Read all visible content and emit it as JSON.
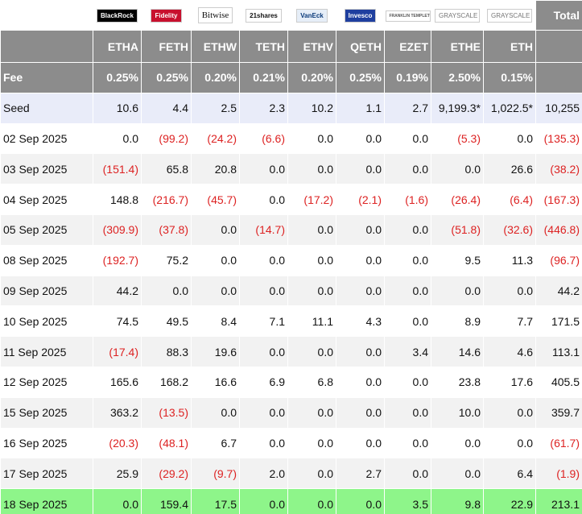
{
  "header": {
    "logos": [
      "BlackRock",
      "Fidelity",
      "Bitwise",
      "21shares",
      "VanEck",
      "Invesco",
      "FRANKLIN TEMPLETON",
      "GRAYSCALE",
      "GRAYSCALE"
    ],
    "total": "Total",
    "tickers": [
      "ETHA",
      "FETH",
      "ETHW",
      "TETH",
      "ETHV",
      "QETH",
      "EZET",
      "ETHE",
      "ETH"
    ]
  },
  "fee": {
    "label": "Fee",
    "values": [
      "0.25%",
      "0.25%",
      "0.20%",
      "0.21%",
      "0.20%",
      "0.25%",
      "0.19%",
      "2.50%",
      "0.15%"
    ]
  },
  "rows": [
    {
      "date": "Seed",
      "values": [
        "10.6",
        "4.4",
        "2.5",
        "2.3",
        "10.2",
        "1.1",
        "2.7",
        "9,199.3*",
        "1,022.5*",
        "10,255"
      ]
    },
    {
      "date": "02 Sep 2025",
      "values": [
        "0.0",
        "(99.2)",
        "(24.2)",
        "(6.6)",
        "0.0",
        "0.0",
        "0.0",
        "(5.3)",
        "0.0",
        "(135.3)"
      ]
    },
    {
      "date": "03 Sep 2025",
      "values": [
        "(151.4)",
        "65.8",
        "20.8",
        "0.0",
        "0.0",
        "0.0",
        "0.0",
        "0.0",
        "26.6",
        "(38.2)"
      ]
    },
    {
      "date": "04 Sep 2025",
      "values": [
        "148.8",
        "(216.7)",
        "(45.7)",
        "0.0",
        "(17.2)",
        "(2.1)",
        "(1.6)",
        "(26.4)",
        "(6.4)",
        "(167.3)"
      ]
    },
    {
      "date": "05 Sep 2025",
      "values": [
        "(309.9)",
        "(37.8)",
        "0.0",
        "(14.7)",
        "0.0",
        "0.0",
        "0.0",
        "(51.8)",
        "(32.6)",
        "(446.8)"
      ]
    },
    {
      "date": "08 Sep 2025",
      "values": [
        "(192.7)",
        "75.2",
        "0.0",
        "0.0",
        "0.0",
        "0.0",
        "0.0",
        "9.5",
        "11.3",
        "(96.7)"
      ]
    },
    {
      "date": "09 Sep 2025",
      "values": [
        "44.2",
        "0.0",
        "0.0",
        "0.0",
        "0.0",
        "0.0",
        "0.0",
        "0.0",
        "0.0",
        "44.2"
      ]
    },
    {
      "date": "10 Sep 2025",
      "values": [
        "74.5",
        "49.5",
        "8.4",
        "7.1",
        "11.1",
        "4.3",
        "0.0",
        "8.9",
        "7.7",
        "171.5"
      ]
    },
    {
      "date": "11 Sep 2025",
      "values": [
        "(17.4)",
        "88.3",
        "19.6",
        "0.0",
        "0.0",
        "0.0",
        "3.4",
        "14.6",
        "4.6",
        "113.1"
      ]
    },
    {
      "date": "12 Sep 2025",
      "values": [
        "165.6",
        "168.2",
        "16.6",
        "6.9",
        "6.8",
        "0.0",
        "0.0",
        "23.8",
        "17.6",
        "405.5"
      ]
    },
    {
      "date": "15 Sep 2025",
      "values": [
        "363.2",
        "(13.5)",
        "0.0",
        "0.0",
        "0.0",
        "0.0",
        "0.0",
        "10.0",
        "0.0",
        "359.7"
      ]
    },
    {
      "date": "16 Sep 2025",
      "values": [
        "(20.3)",
        "(48.1)",
        "6.7",
        "0.0",
        "0.0",
        "0.0",
        "0.0",
        "0.0",
        "0.0",
        "(61.7)"
      ]
    },
    {
      "date": "17 Sep 2025",
      "values": [
        "25.9",
        "(29.2)",
        "(9.7)",
        "2.0",
        "0.0",
        "2.7",
        "0.0",
        "0.0",
        "6.4",
        "(1.9)"
      ]
    },
    {
      "date": "18 Sep 2025",
      "values": [
        "0.0",
        "159.4",
        "17.5",
        "0.0",
        "0.0",
        "0.0",
        "3.5",
        "9.8",
        "22.9",
        "213.1"
      ]
    }
  ]
}
